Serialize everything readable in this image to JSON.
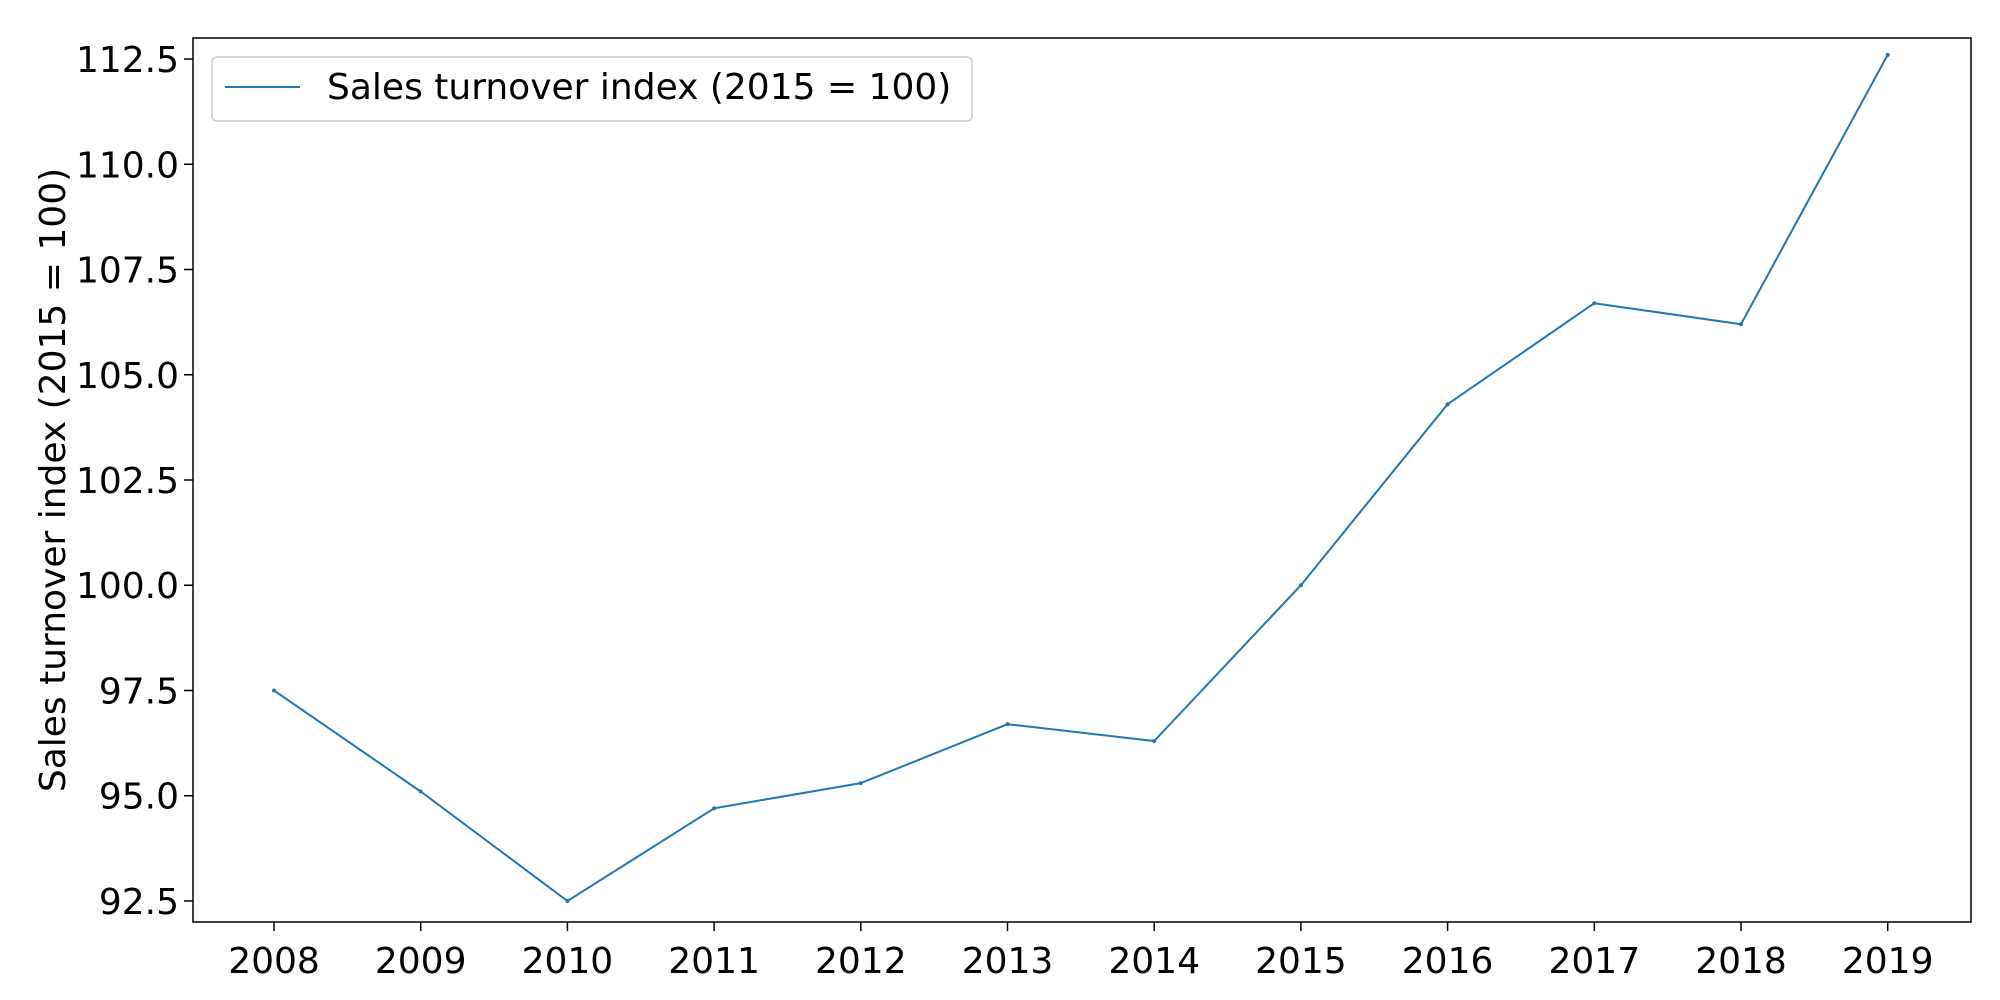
{
  "chart_data": {
    "type": "line",
    "title": "",
    "xlabel": "",
    "ylabel": "Sales turnover index (2015 = 100)",
    "x": [
      "2008",
      "2009",
      "2010",
      "2011",
      "2012",
      "2013",
      "2014",
      "2015",
      "2016",
      "2017",
      "2018",
      "2019"
    ],
    "series": [
      {
        "name": "Sales turnover index (2015 = 100)",
        "color": "#1f77b4",
        "values": [
          97.5,
          95.1,
          92.5,
          94.7,
          95.3,
          96.7,
          96.3,
          100.0,
          104.3,
          106.7,
          106.2,
          112.6
        ]
      }
    ],
    "ylim": [
      92.0,
      113.0
    ],
    "yticks": [
      "92.5",
      "95.0",
      "97.5",
      "100.0",
      "102.5",
      "105.0",
      "107.5",
      "110.0",
      "112.5"
    ],
    "grid": false,
    "legend_position": "top-left"
  }
}
